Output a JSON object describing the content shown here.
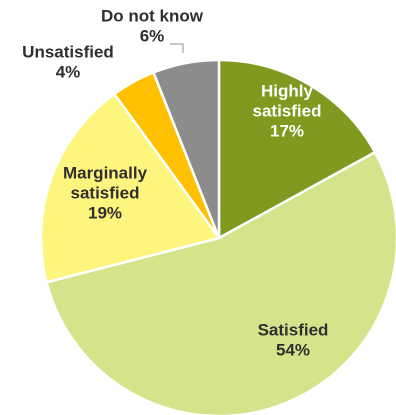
{
  "chart_data": {
    "type": "pie",
    "slices": [
      {
        "label_lines": [
          "Highly",
          "satisfied"
        ],
        "value": 17,
        "value_text": "17%",
        "color": "#7f9a1e",
        "text_color": "#ffffff"
      },
      {
        "label_lines": [
          "Satisfied"
        ],
        "value": 54,
        "value_text": "54%",
        "color": "#d4e48a",
        "text_color": "#2f2f2f"
      },
      {
        "label_lines": [
          "Marginally",
          "satisfied"
        ],
        "value": 19,
        "value_text": "19%",
        "color": "#fdf57d",
        "text_color": "#2f2f2f"
      },
      {
        "label_lines": [
          "Unsatisfied"
        ],
        "value": 4,
        "value_text": "4%",
        "color": "#ffc000",
        "text_color": "#2f2f2f"
      },
      {
        "label_lines": [
          "Do not know"
        ],
        "value": 6,
        "value_text": "6%",
        "color": "#8c8c8c",
        "text_color": "#2f2f2f"
      }
    ],
    "start_position": "top",
    "direction": "clockwise",
    "legend": "none",
    "edge_color": "#ffffff"
  }
}
